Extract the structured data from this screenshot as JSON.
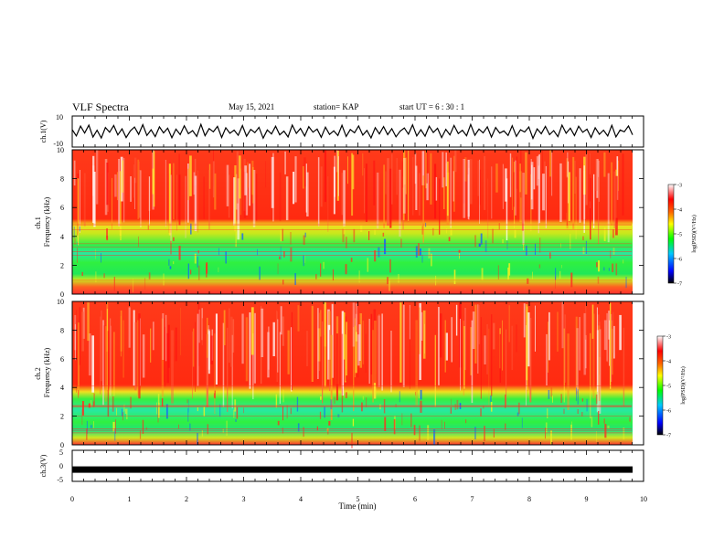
{
  "header": {
    "title": "VLF Spectra",
    "date": "May 15, 2021",
    "station": "station= KAP",
    "start": "start  UT =   6  : 30 : 1"
  },
  "chart_data": [
    {
      "type": "line",
      "ylabel": "ch.1(V)",
      "ylim": [
        -10,
        10
      ],
      "yticks": [
        "10",
        "-10"
      ],
      "xlim": [
        0,
        10
      ],
      "values": [
        1.2,
        -2.8,
        3.5,
        -1.0,
        4.1,
        -3.6,
        0.8,
        -4.2,
        2.6,
        -0.5,
        3.9,
        -2.2,
        1.7,
        -3.9,
        0.4,
        2.9,
        -1.8,
        4.4,
        -2.5,
        1.1,
        -3.3,
        3.0,
        -0.9,
        2.2,
        -4.0,
        1.5,
        -2.0,
        3.7,
        -1.4,
        0.6,
        -3.1,
        4.6,
        -2.7,
        1.9,
        -0.2,
        3.3,
        -3.8,
        2.4,
        -1.1,
        0.9,
        -2.4,
        3.8,
        -3.0,
        1.4,
        -0.7,
        2.7,
        -4.3,
        1.0,
        -1.6,
        3.4,
        -2.1,
        0.3,
        -3.5,
        4.2,
        -1.2,
        2.0,
        -2.9,
        3.1,
        -0.4,
        1.6,
        -3.7,
        2.8,
        -1.9,
        0.5,
        -2.6,
        4.0,
        -3.2,
        1.3,
        -0.8,
        3.6,
        -2.3,
        0.7,
        -4.1,
        2.5,
        -1.5,
        3.2,
        -2.0,
        1.8,
        -3.4,
        0.2,
        2.3,
        -1.7,
        4.3,
        -2.8,
        1.2,
        -3.0,
        3.5,
        -0.6,
        2.1,
        -3.9,
        1.4,
        -2.2,
        3.9,
        -1.3,
        0.8,
        -2.7,
        4.5,
        -2.4,
        1.6,
        -0.9,
        3.0,
        -3.6,
        2.6,
        -1.0,
        0.4,
        -2.5,
        3.7,
        -3.1,
        1.1,
        -0.3,
        2.9,
        -4.4,
        1.7,
        -1.4,
        3.3,
        -2.0,
        0.6,
        -3.3,
        4.1,
        -1.1,
        2.2,
        -2.6,
        3.4,
        -0.5,
        1.5,
        -3.8,
        2.4,
        -1.8,
        0.9,
        -2.9,
        4.0,
        -3.5,
        1.0,
        -0.2,
        3.6,
        -2.1
      ]
    },
    {
      "type": "heatmap",
      "ylabel": "ch.1\nFrequency (kHz)",
      "yticks": [
        "0",
        "2",
        "4",
        "6",
        "8",
        "10"
      ],
      "ylim": [
        0,
        10
      ],
      "xlim": [
        0,
        10
      ],
      "colorbar": {
        "label": "log(PSD)(V²/Hz)",
        "ticks": [
          "-3",
          "-4",
          "-5",
          "-6",
          "-7"
        ],
        "range": [
          -7,
          -3
        ]
      }
    },
    {
      "type": "heatmap",
      "ylabel": "ch.2\nFrequency (kHz)",
      "yticks": [
        "0",
        "2",
        "4",
        "6",
        "8",
        "10"
      ],
      "ylim": [
        0,
        10
      ],
      "xlim": [
        0,
        10
      ],
      "colorbar": {
        "label": "log(PSD)(V²/Hz)",
        "ticks": [
          "-3",
          "-4",
          "-5",
          "-6",
          "-7"
        ],
        "range": [
          -7,
          -3
        ]
      }
    },
    {
      "type": "line",
      "ylabel": "ch.3(V)",
      "ylim": [
        -5,
        5
      ],
      "yticks": [
        "5",
        "0",
        "-5"
      ],
      "xlim": [
        0,
        10
      ],
      "xlabel": "Time (min)",
      "xticks": [
        "0",
        "1",
        "2",
        "3",
        "4",
        "5",
        "6",
        "7",
        "8",
        "9",
        "10"
      ],
      "values": [
        -1.2,
        -1.2
      ]
    }
  ]
}
